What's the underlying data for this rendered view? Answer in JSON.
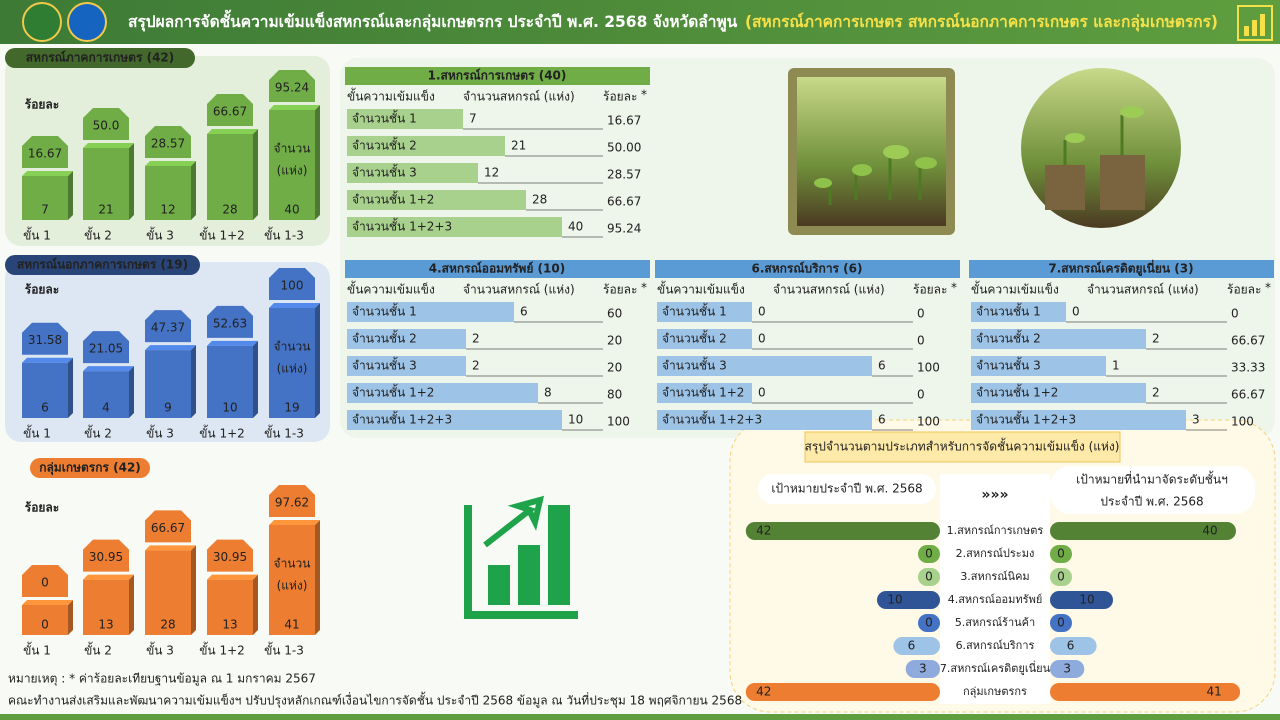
{
  "header": {
    "title": "สรุปผลการจัดชั้นความเข้มแข็งสหกรณ์และกลุ่มเกษตรกร ประจำปี พ.ศ. 2568 จังหวัดลำพูน",
    "subtitle": "(สหกรณ์ภาคการเกษตร สหกรณ์นอกภาคการเกษตร และกลุ่มเกษตรกร)"
  },
  "panels": [
    {
      "title": "สหกรณ์ภาคการเกษตร (42)",
      "percent_label": "ร้อยละ",
      "unit_label": [
        "จำนวน",
        "(แห่ง)"
      ],
      "color": "#70ad47",
      "categories": [
        "ขั้น 1",
        "ขั้น 2",
        "ขั้น 3",
        "ขั้น 1+2",
        "ขั้น 1-3"
      ],
      "counts": [
        7,
        21,
        12,
        28,
        40
      ],
      "percents": [
        16.67,
        50,
        28.57,
        66.67,
        95.24
      ],
      "percent_labels": [
        "16.67",
        "50.0",
        "28.57",
        "66.67",
        "95.24"
      ]
    },
    {
      "title": "สหกรณ์นอกภาคการเกษตร (19)",
      "percent_label": "ร้อยละ",
      "unit_label": [
        "จำนวน",
        "(แห่ง)"
      ],
      "color": "#4472c4",
      "categories": [
        "ขั้น 1",
        "ขั้น 2",
        "ขั้น 3",
        "ขั้น 1+2",
        "ขั้น 1-3"
      ],
      "counts": [
        6,
        4,
        9,
        10,
        19
      ],
      "percents": [
        31.58,
        21.05,
        47.37,
        52.63,
        100
      ]
    },
    {
      "title": "กลุ่มเกษตรกร (42)",
      "percent_label": "ร้อยละ",
      "unit_label": [
        "จำนวน",
        "(แห่ง)"
      ],
      "color": "#ed7d31",
      "categories": [
        "ขั้น 1",
        "ขั้น 2",
        "ขั้น 3",
        "ขั้น 1+2",
        "ขั้น 1-3"
      ],
      "counts": [
        0,
        13,
        28,
        13,
        41
      ],
      "percents": [
        0,
        30.95,
        66.67,
        30.95,
        97.62
      ]
    }
  ],
  "tables": [
    {
      "title": "1.สหกรณ์การเกษตร (40)",
      "color": "#70ad47",
      "bar_color": "#a9d18e",
      "headers": [
        "ขั้นความเข้มแข็ง",
        "จำนวนสหกรณ์ (แห่ง)",
        "ร้อยละ",
        "*"
      ],
      "rows": [
        "จำนวนชั้น 1",
        "จำนวนชั้น 2",
        "จำนวนชั้น 3",
        "จำนวนชั้น 1+2",
        "จำนวนชั้น 1+2+3"
      ],
      "counts": [
        7,
        21,
        12,
        28,
        40
      ],
      "percents": [
        16.67,
        50,
        28.57,
        66.67,
        95.24
      ],
      "percent_labels": [
        "16.67",
        "50.00",
        "28.57",
        "66.67",
        "95.24"
      ]
    },
    {
      "title": "4.สหกรณ์ออมทรัพย์ (10)",
      "color": "#5b9bd5",
      "bar_color": "#9dc3e6",
      "headers": [
        "ขั้นความเข้มแข็ง",
        "จำนวนสหกรณ์ (แห่ง)",
        "ร้อยละ",
        "*"
      ],
      "rows": [
        "จำนวนชั้น 1",
        "จำนวนชั้น 2",
        "จำนวนชั้น 3",
        "จำนวนชั้น 1+2",
        "จำนวนชั้น 1+2+3"
      ],
      "counts": [
        6,
        2,
        2,
        8,
        10
      ],
      "percents": [
        60,
        20,
        20,
        80,
        100
      ]
    },
    {
      "title": "6.สหกรณ์บริการ (6)",
      "color": "#5b9bd5",
      "bar_color": "#9dc3e6",
      "headers": [
        "ขั้นความเข้มแข็ง",
        "จำนวนสหกรณ์ (แห่ง)",
        "ร้อยละ",
        "*"
      ],
      "rows": [
        "จำนวนชั้น 1",
        "จำนวนชั้น 2",
        "จำนวนชั้น 3",
        "จำนวนชั้น 1+2",
        "จำนวนชั้น 1+2+3"
      ],
      "counts": [
        0,
        0,
        6,
        0,
        6
      ],
      "percents": [
        0,
        0,
        100,
        0,
        100
      ]
    },
    {
      "title": "7.สหกรณ์เครดิตยูเนี่ยน (3)",
      "color": "#5b9bd5",
      "bar_color": "#9dc3e6",
      "headers": [
        "ขั้นความเข้มแข็ง",
        "จำนวนสหกรณ์ (แห่ง)",
        "ร้อยละ",
        "*"
      ],
      "rows": [
        "จำนวนชั้น 1",
        "จำนวนชั้น 2",
        "จำนวนชั้น 3",
        "จำนวนชั้น 1+2",
        "จำนวนชั้น 1+2+3"
      ],
      "counts": [
        0,
        2,
        1,
        2,
        3
      ],
      "percents": [
        0,
        66.67,
        33.33,
        66.67,
        100
      ]
    }
  ],
  "summary": {
    "title": "สรุปจำนวนตามประเภทสำหรับการจัดชั้นความเข้มแข็ง (แห่ง)",
    "left_header": "เป้าหมายประจำปี พ.ศ. 2568",
    "right_header": [
      "เป้าหมายที่นำมาจัดระดับชั้นฯ",
      "ประจำปี พ.ศ. 2568"
    ],
    "rows": [
      {
        "label": "1.สหกรณ์การเกษตร",
        "target": 42,
        "classified": 40,
        "color": "#548235"
      },
      {
        "label": "2.สหกรณ์ประมง",
        "target": 0,
        "classified": 0,
        "color": "#70ad47"
      },
      {
        "label": "3.สหกรณ์นิคม",
        "target": 0,
        "classified": 0,
        "color": "#a9d18e"
      },
      {
        "label": "4.สหกรณ์ออมทรัพย์",
        "target": 10,
        "classified": 10,
        "color": "#2f5597"
      },
      {
        "label": "5.สหกรณ์ร้านค้า",
        "target": 0,
        "classified": 0,
        "color": "#4472c4"
      },
      {
        "label": "6.สหกรณ์บริการ",
        "target": 6,
        "classified": 6,
        "color": "#9dc3e6"
      },
      {
        "label": "7.สหกรณ์เครดิตยูเนี่ยน",
        "target": 3,
        "classified": 3,
        "color": "#8faadc"
      },
      {
        "label": "กลุ่มเกษตรกร",
        "target": 42,
        "classified": 41,
        "color": "#ed7d31"
      }
    ]
  },
  "notes": [
    "หมายเหตุ : * ค่าร้อยละเทียบฐานข้อมูล ณ 1 มกราคม 2567",
    "คณะทำงานส่งเสริมและพัฒนาความเข้มแข็งฯ ปรับปรุงหลักเกณฑ์เงื่อนไขการจัดชั้น ประจำปี 2568 ข้อมูล ณ วันที่ประชุม 18 พฤศจิกายน 2568"
  ]
}
